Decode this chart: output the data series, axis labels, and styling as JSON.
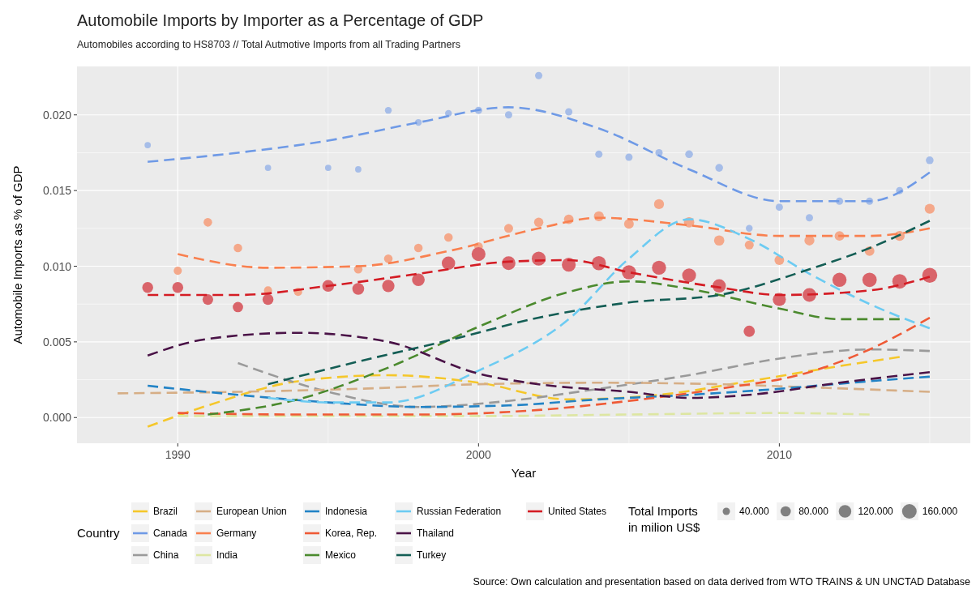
{
  "chart_data": {
    "type": "line",
    "title": "Automobile Imports by Importer as a Percentage of GDP",
    "subtitle": "Automobiles according to HS8703 // Total Autmotive Imports from all Trading Partners",
    "xlabel": "Year",
    "ylabel": "Automobile Imports as % of GDP",
    "legend_title": "Country",
    "annotations": [
      "Total Imports in milion US$",
      "Source: Own calculation and presentation based on data derived from WTO TRAINS & UN UNCTAD Database"
    ],
    "xlim": [
      1986.65,
      2016.35
    ],
    "xticks": [
      1990,
      2000,
      2010
    ],
    "ylim": [
      -0.0017,
      0.0232
    ],
    "yticks": [
      {
        "value": 0,
        "label": "0.000"
      },
      {
        "value": 0.005,
        "label": "0.005"
      },
      {
        "value": 0.01,
        "label": "0.010"
      },
      {
        "value": 0.015,
        "label": "0.015"
      },
      {
        "value": 0.02,
        "label": "0.020"
      }
    ],
    "grid": true,
    "legend": "bottom",
    "line_style": "dashed",
    "size_legend": [
      {
        "value": 40000,
        "label": "40.000"
      },
      {
        "value": 80000,
        "label": "80.000"
      },
      {
        "value": 120000,
        "label": "120.000"
      },
      {
        "value": 160000,
        "label": "160.000"
      }
    ],
    "series": [
      {
        "type": "bubble",
        "color": "#a6bde8",
        "x": [
          1989,
          1993,
          1995,
          1996,
          1997,
          1998,
          1999,
          2000,
          2001,
          2002,
          2003,
          2004,
          2005,
          2006,
          2007,
          2008,
          2009,
          2010,
          2011,
          2012,
          2013,
          2014,
          2015
        ],
        "values": [
          0.018,
          0.0165,
          0.0165,
          0.0164,
          0.0203,
          0.0195,
          0.0201,
          0.0203,
          0.02,
          0.0226,
          0.0202,
          0.0174,
          0.0172,
          0.0175,
          0.0174,
          0.0165,
          0.0125,
          0.0139,
          0.0132,
          0.0143,
          0.0143,
          0.015,
          0.017
        ],
        "sizes": [
          30000,
          30000,
          30000,
          30000,
          35000,
          35000,
          35000,
          40000,
          40000,
          40000,
          40000,
          40000,
          40000,
          40000,
          45000,
          45000,
          35000,
          40000,
          40000,
          40000,
          40000,
          40000,
          45000
        ]
      },
      {
        "type": "bubble",
        "color": "#f4a88a",
        "x": [
          1990,
          1991,
          1992,
          1993,
          1994,
          1996,
          1997,
          1998,
          1999,
          2000,
          2001,
          2002,
          2003,
          2004,
          2005,
          2006,
          2007,
          2008,
          2009,
          2010,
          2011,
          2012,
          2013,
          2014,
          2015
        ],
        "values": [
          0.0097,
          0.0129,
          0.0112,
          0.0084,
          0.0083,
          0.0098,
          0.0105,
          0.0112,
          0.0119,
          0.0113,
          0.0125,
          0.0129,
          0.0131,
          0.0133,
          0.0128,
          0.0141,
          0.0129,
          0.0117,
          0.0114,
          0.0104,
          0.0117,
          0.012,
          0.011,
          0.012,
          0.0138
        ],
        "sizes": [
          50000,
          55000,
          55000,
          50000,
          50000,
          55000,
          55000,
          55000,
          55000,
          55000,
          60000,
          65000,
          70000,
          75000,
          70000,
          75000,
          80000,
          80000,
          60000,
          70000,
          75000,
          70000,
          70000,
          75000,
          75000
        ]
      },
      {
        "type": "bubble",
        "color": "#d9646a",
        "x": [
          1989,
          1990,
          1991,
          1992,
          1993,
          1995,
          1996,
          1997,
          1998,
          1999,
          2000,
          2001,
          2002,
          2003,
          2004,
          2005,
          2006,
          2007,
          2008,
          2009,
          2010,
          2011,
          2012,
          2013,
          2014,
          2015
        ],
        "values": [
          0.0086,
          0.0086,
          0.0078,
          0.0073,
          0.0078,
          0.0087,
          0.0085,
          0.0087,
          0.0091,
          0.0102,
          0.0108,
          0.0102,
          0.0105,
          0.0101,
          0.0102,
          0.0096,
          0.0099,
          0.0094,
          0.0087,
          0.0057,
          0.0078,
          0.0081,
          0.0091,
          0.0091,
          0.009,
          0.0094
        ],
        "sizes": [
          90000,
          90000,
          85000,
          80000,
          90000,
          105000,
          105000,
          115000,
          120000,
          135000,
          145000,
          140000,
          145000,
          145000,
          150000,
          150000,
          150000,
          145000,
          135000,
          95000,
          130000,
          140000,
          150000,
          155000,
          160000,
          170000
        ]
      },
      {
        "name": "Brazil",
        "color": "#f5c72a",
        "x": [
          1989,
          1991,
          1994,
          1997,
          2000,
          2003,
          2006,
          2009,
          2012,
          2014
        ],
        "values": [
          -0.0006,
          0.0008,
          0.0024,
          0.0028,
          0.0023,
          0.0012,
          0.0015,
          0.0024,
          0.0034,
          0.004
        ]
      },
      {
        "name": "Canada",
        "color": "#6f9ae6",
        "x": [
          1989,
          1992,
          1995,
          1998,
          2001,
          2004,
          2007,
          2010,
          2013,
          2015
        ],
        "values": [
          0.0169,
          0.0175,
          0.0183,
          0.0195,
          0.0205,
          0.0191,
          0.0164,
          0.0143,
          0.0143,
          0.0162
        ]
      },
      {
        "name": "China",
        "color": "#9a9a9a",
        "x": [
          1992,
          1995,
          1998,
          2001,
          2004,
          2007,
          2010,
          2013,
          2015
        ],
        "values": [
          0.0036,
          0.0017,
          0.0007,
          0.0011,
          0.0019,
          0.0028,
          0.0039,
          0.0045,
          0.0044
        ]
      },
      {
        "name": "European Union",
        "color": "#d6ae86",
        "x": [
          1988,
          1992,
          1996,
          2000,
          2004,
          2008,
          2011,
          2015
        ],
        "values": [
          0.0016,
          0.0017,
          0.0019,
          0.0022,
          0.0023,
          0.0022,
          0.002,
          0.0017
        ]
      },
      {
        "name": "Germany",
        "color": "#f9804f",
        "x": [
          1990,
          1993,
          1996,
          1999,
          2002,
          2004,
          2007,
          2010,
          2013,
          2015
        ],
        "values": [
          0.0108,
          0.0099,
          0.01,
          0.011,
          0.0125,
          0.0132,
          0.0127,
          0.012,
          0.012,
          0.0125
        ]
      },
      {
        "name": "India",
        "color": "#dde6a2",
        "x": [
          1990,
          1995,
          2000,
          2005,
          2010,
          2013
        ],
        "values": [
          0.0001,
          0.0001,
          0.0001,
          0.0002,
          0.0003,
          0.0002
        ]
      },
      {
        "name": "Indonesia",
        "color": "#2283c6",
        "x": [
          1989,
          1992,
          1995,
          1998,
          2001,
          2004,
          2007,
          2010,
          2013,
          2015
        ],
        "values": [
          0.0021,
          0.0015,
          0.001,
          0.0007,
          0.0008,
          0.0012,
          0.0015,
          0.0019,
          0.0024,
          0.0027
        ]
      },
      {
        "name": "Korea, Rep.",
        "color": "#ef5a36",
        "x": [
          1990,
          1994,
          1998,
          2002,
          2005,
          2008,
          2011,
          2013,
          2015
        ],
        "values": [
          0.0003,
          0.0002,
          0.0002,
          0.0005,
          0.0011,
          0.0019,
          0.003,
          0.0045,
          0.0066
        ]
      },
      {
        "name": "Mexico",
        "color": "#4b8a2e",
        "x": [
          1991,
          1994,
          1997,
          2000,
          2003,
          2005,
          2007,
          2010,
          2012,
          2014
        ],
        "values": [
          0.0002,
          0.0012,
          0.0033,
          0.006,
          0.0083,
          0.009,
          0.0085,
          0.0072,
          0.0065,
          0.0065
        ]
      },
      {
        "name": "Russian Federation",
        "color": "#6ccbf2",
        "x": [
          1993,
          1995,
          1997,
          2000,
          2003,
          2005,
          2007,
          2009,
          2011,
          2013,
          2015
        ],
        "values": [
          0.0013,
          0.001,
          0.001,
          0.0031,
          0.0065,
          0.0105,
          0.0131,
          0.0118,
          0.0095,
          0.0075,
          0.0059
        ]
      },
      {
        "name": "Thailand",
        "color": "#4a1347",
        "x": [
          1989,
          1991,
          1994,
          1997,
          2000,
          2002,
          2005,
          2007,
          2009,
          2012,
          2015
        ],
        "values": [
          0.0041,
          0.0052,
          0.0056,
          0.005,
          0.0029,
          0.0022,
          0.0017,
          0.0013,
          0.0015,
          0.0023,
          0.003
        ]
      },
      {
        "name": "Turkey",
        "color": "#145e55",
        "x": [
          1993,
          1996,
          1999,
          2002,
          2005,
          2008,
          2011,
          2013,
          2015
        ],
        "values": [
          0.0022,
          0.0037,
          0.0051,
          0.0066,
          0.0076,
          0.0081,
          0.0098,
          0.0112,
          0.013
        ]
      },
      {
        "name": "United States",
        "color": "#d41c24",
        "x": [
          1989,
          1992,
          1995,
          1998,
          2001,
          2003,
          2005,
          2008,
          2010,
          2013,
          2015
        ],
        "values": [
          0.0081,
          0.0081,
          0.0087,
          0.0095,
          0.0103,
          0.0104,
          0.0096,
          0.0086,
          0.0081,
          0.0084,
          0.0093
        ]
      }
    ]
  }
}
